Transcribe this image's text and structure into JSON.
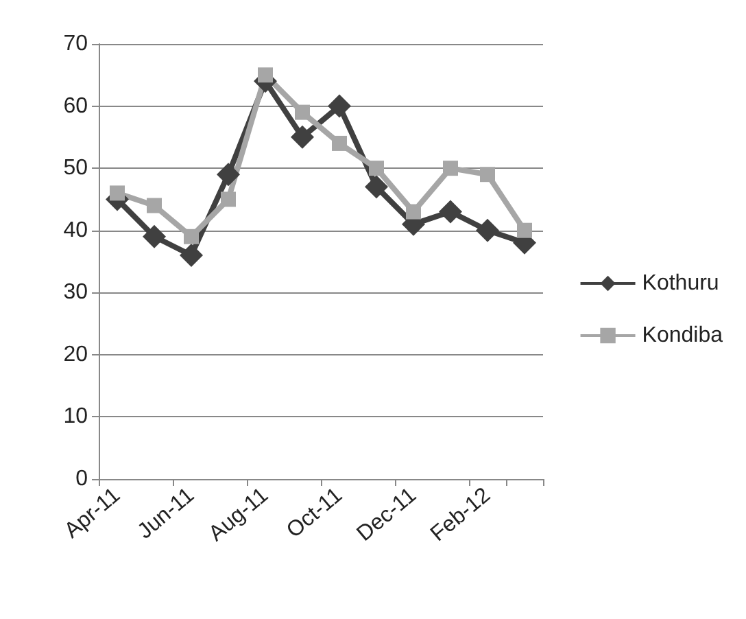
{
  "chart_data": {
    "type": "line",
    "categories": [
      "Apr-11",
      null,
      "Jun-11",
      null,
      "Aug-11",
      null,
      "Oct-11",
      null,
      "Dec-11",
      null,
      "Feb-12",
      null
    ],
    "series": [
      {
        "name": "Kothuru",
        "color": "#404040",
        "marker": "diamond",
        "values": [
          45,
          39,
          36,
          49,
          64,
          55,
          60,
          47,
          41,
          43,
          40,
          38
        ]
      },
      {
        "name": "Kondiba",
        "color": "#a6a6a6",
        "marker": "square",
        "values": [
          46,
          44,
          39,
          45,
          65,
          59,
          54,
          50,
          43,
          50,
          49,
          40
        ]
      }
    ],
    "ylim": [
      0,
      70
    ],
    "yticks": [
      0,
      10,
      20,
      30,
      40,
      50,
      60,
      70
    ],
    "grid": "y",
    "legend": "right"
  }
}
